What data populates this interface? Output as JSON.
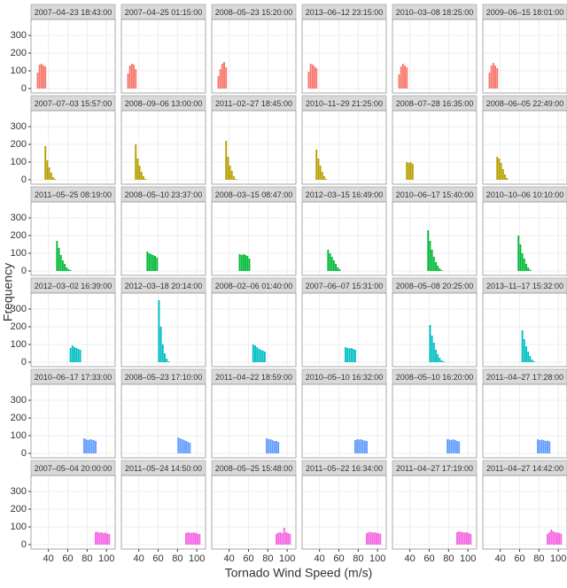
{
  "chart_data": {
    "type": "histogram",
    "xlabel": "Tornado Wind Speed (m/s)",
    "ylabel": "Frequency",
    "xlim": [
      22,
      109
    ],
    "ylim": [
      -25,
      390
    ],
    "xticks": [
      40,
      60,
      80,
      100
    ],
    "yticks": [
      0,
      100,
      200,
      300
    ],
    "grid": true,
    "panels": [
      {
        "title": "2007–04–23 18:43:00",
        "color": "#f8766d",
        "bins": [
          28,
          30,
          32,
          34,
          36,
          38
        ],
        "values": [
          90,
          135,
          140,
          130,
          125
        ]
      },
      {
        "title": "2007–04–25 01:15:00",
        "color": "#f8766d",
        "bins": [
          28,
          30,
          32,
          34,
          36,
          38
        ],
        "values": [
          85,
          130,
          140,
          135,
          110
        ]
      },
      {
        "title": "2008–05–23 15:20:00",
        "color": "#f8766d",
        "bins": [
          28,
          30,
          32,
          34,
          36,
          38
        ],
        "values": [
          70,
          110,
          140,
          150,
          120
        ]
      },
      {
        "title": "2013–06–12 23:15:00",
        "color": "#f8766d",
        "bins": [
          28,
          30,
          32,
          34,
          36,
          38
        ],
        "values": [
          95,
          140,
          135,
          125,
          115
        ]
      },
      {
        "title": "2010–03–08 18:25:00",
        "color": "#f8766d",
        "bins": [
          28,
          30,
          32,
          34,
          36,
          38
        ],
        "values": [
          80,
          125,
          140,
          130,
          120
        ]
      },
      {
        "title": "2009–06–15 18:01:00",
        "color": "#f8766d",
        "bins": [
          28,
          30,
          32,
          34,
          36,
          38
        ],
        "values": [
          90,
          130,
          145,
          130,
          115
        ]
      },
      {
        "title": "2007–07–03 15:57:00",
        "color": "#b79f00",
        "bins": [
          36,
          38,
          40,
          42,
          44,
          46,
          48
        ],
        "values": [
          190,
          110,
          70,
          40,
          15,
          5
        ]
      },
      {
        "title": "2008–09–06 13:00:00",
        "color": "#b79f00",
        "bins": [
          36,
          38,
          40,
          42,
          44,
          46,
          48
        ],
        "values": [
          200,
          120,
          80,
          45,
          20,
          5
        ]
      },
      {
        "title": "2011–02–27 18:45:00",
        "color": "#b79f00",
        "bins": [
          36,
          38,
          40,
          42,
          44,
          46,
          48
        ],
        "values": [
          220,
          130,
          80,
          50,
          20,
          5
        ]
      },
      {
        "title": "2010–11–29 21:25:00",
        "color": "#b79f00",
        "bins": [
          36,
          38,
          40,
          42,
          44,
          46,
          48
        ],
        "values": [
          170,
          120,
          80,
          45,
          20,
          5
        ]
      },
      {
        "title": "2008–07–28 16:35:00",
        "color": "#b79f00",
        "bins": [
          36,
          38,
          40,
          42,
          44
        ],
        "values": [
          100,
          95,
          100,
          90
        ]
      },
      {
        "title": "2008–06–05 22:49:00",
        "color": "#b79f00",
        "bins": [
          36,
          38,
          40,
          42,
          44,
          46,
          48
        ],
        "values": [
          130,
          120,
          95,
          60,
          30,
          10
        ]
      },
      {
        "title": "2011–05–25 08:19:00",
        "color": "#00ba38",
        "bins": [
          48,
          50,
          52,
          54,
          56,
          58,
          60,
          62,
          64
        ],
        "values": [
          170,
          130,
          90,
          60,
          40,
          20,
          10,
          5
        ]
      },
      {
        "title": "2008–05–10 23:37:00",
        "color": "#00ba38",
        "bins": [
          48,
          50,
          52,
          54,
          56,
          58,
          60
        ],
        "values": [
          110,
          100,
          95,
          90,
          85,
          75
        ]
      },
      {
        "title": "2008–03–15 08:47:00",
        "color": "#00ba38",
        "bins": [
          50,
          52,
          54,
          56,
          58,
          60,
          62
        ],
        "values": [
          95,
          90,
          95,
          90,
          85,
          70
        ]
      },
      {
        "title": "2012–03–15 16:49:00",
        "color": "#00ba38",
        "bins": [
          48,
          50,
          52,
          54,
          56,
          58,
          60,
          62
        ],
        "values": [
          120,
          100,
          80,
          60,
          40,
          20,
          10
        ]
      },
      {
        "title": "2010–06–17 15:40:00",
        "color": "#00ba38",
        "bins": [
          58,
          60,
          62,
          64,
          66,
          68,
          70,
          72,
          74
        ],
        "values": [
          230,
          170,
          120,
          80,
          50,
          30,
          15,
          5
        ]
      },
      {
        "title": "2010–10–06 10:10:00",
        "color": "#00ba38",
        "bins": [
          58,
          60,
          62,
          64,
          66,
          68,
          70,
          72
        ],
        "values": [
          200,
          150,
          100,
          70,
          40,
          20,
          8
        ]
      },
      {
        "title": "2012–03–02 16:39:00",
        "color": "#00bfc4",
        "bins": [
          62,
          64,
          66,
          68,
          70,
          72,
          74
        ],
        "values": [
          80,
          95,
          85,
          80,
          75,
          70
        ]
      },
      {
        "title": "2012–03–18 20:14:00",
        "color": "#00bfc4",
        "bins": [
          60,
          62,
          64,
          66,
          68,
          70,
          72
        ],
        "values": [
          350,
          200,
          100,
          50,
          20,
          5
        ]
      },
      {
        "title": "2008–02–06 01:40:00",
        "color": "#00bfc4",
        "bins": [
          64,
          66,
          68,
          70,
          72,
          74,
          76,
          78
        ],
        "values": [
          100,
          95,
          85,
          75,
          70,
          65,
          60
        ]
      },
      {
        "title": "2007–06–07 15:31:00",
        "color": "#00bfc4",
        "bins": [
          66,
          68,
          70,
          72,
          74,
          76,
          78
        ],
        "values": [
          85,
          80,
          78,
          80,
          75,
          70
        ]
      },
      {
        "title": "2008–05–08 20:25:00",
        "color": "#00bfc4",
        "bins": [
          60,
          62,
          64,
          66,
          68,
          70,
          72,
          74,
          76
        ],
        "values": [
          210,
          150,
          110,
          70,
          45,
          25,
          10,
          5
        ]
      },
      {
        "title": "2013–11–17 15:32:00",
        "color": "#00bfc4",
        "bins": [
          62,
          64,
          66,
          68,
          70,
          72,
          74,
          76
        ],
        "values": [
          180,
          130,
          90,
          60,
          35,
          15,
          5
        ]
      },
      {
        "title": "2010–06–17 17:33:00",
        "color": "#619cff",
        "bins": [
          76,
          78,
          80,
          82,
          84,
          86,
          88,
          90
        ],
        "values": [
          85,
          80,
          75,
          80,
          78,
          75,
          70
        ]
      },
      {
        "title": "2008–05–23 17:10:00",
        "color": "#619cff",
        "bins": [
          80,
          82,
          84,
          86,
          88,
          90,
          92,
          94
        ],
        "values": [
          90,
          85,
          80,
          75,
          70,
          65,
          60
        ]
      },
      {
        "title": "2011–04–22 18:59:00",
        "color": "#619cff",
        "bins": [
          78,
          80,
          82,
          84,
          86,
          88,
          90,
          92
        ],
        "values": [
          85,
          80,
          80,
          75,
          70,
          70,
          65
        ]
      },
      {
        "title": "2010–05–10 16:32:00",
        "color": "#619cff",
        "bins": [
          76,
          78,
          80,
          82,
          84,
          86,
          88,
          90
        ],
        "values": [
          75,
          80,
          78,
          80,
          75,
          72,
          70
        ]
      },
      {
        "title": "2008–05–10 16:20:00",
        "color": "#619cff",
        "bins": [
          78,
          80,
          82,
          84,
          86,
          88,
          90,
          92
        ],
        "values": [
          80,
          78,
          75,
          80,
          75,
          70,
          68
        ]
      },
      {
        "title": "2011–04–27 17:28:00",
        "color": "#619cff",
        "bins": [
          78,
          80,
          82,
          84,
          86,
          88,
          90,
          92
        ],
        "values": [
          80,
          75,
          78,
          75,
          70,
          72,
          68
        ]
      },
      {
        "title": "2007–05–04 20:00:00",
        "color": "#f564e3",
        "bins": [
          88,
          90,
          92,
          94,
          96,
          98,
          100,
          102,
          104
        ],
        "values": [
          70,
          72,
          68,
          70,
          65,
          68,
          62,
          60
        ]
      },
      {
        "title": "2011–05–24 14:50:00",
        "color": "#f564e3",
        "bins": [
          88,
          90,
          92,
          94,
          96,
          98,
          100,
          102,
          104
        ],
        "values": [
          65,
          70,
          68,
          66,
          70,
          65,
          62,
          60
        ]
      },
      {
        "title": "2008–05–25 15:48:00",
        "color": "#f564e3",
        "bins": [
          88,
          90,
          92,
          94,
          96,
          98,
          100,
          102,
          104
        ],
        "values": [
          60,
          68,
          70,
          65,
          95,
          70,
          65,
          60
        ]
      },
      {
        "title": "2011–05–22 16:34:00",
        "color": "#f564e3",
        "bins": [
          88,
          90,
          92,
          94,
          96,
          98,
          100,
          102,
          104
        ],
        "values": [
          65,
          70,
          72,
          68,
          70,
          66,
          64,
          62
        ]
      },
      {
        "title": "2011–04–27 17:19:00",
        "color": "#f564e3",
        "bins": [
          88,
          90,
          92,
          94,
          96,
          98,
          100,
          102,
          104
        ],
        "values": [
          70,
          75,
          72,
          70,
          68,
          70,
          65,
          60
        ]
      },
      {
        "title": "2011–04–27 14:42:00",
        "color": "#f564e3",
        "bins": [
          88,
          90,
          92,
          94,
          96,
          98,
          100,
          102,
          104
        ],
        "values": [
          60,
          70,
          85,
          75,
          70,
          68,
          65,
          62
        ]
      }
    ]
  }
}
